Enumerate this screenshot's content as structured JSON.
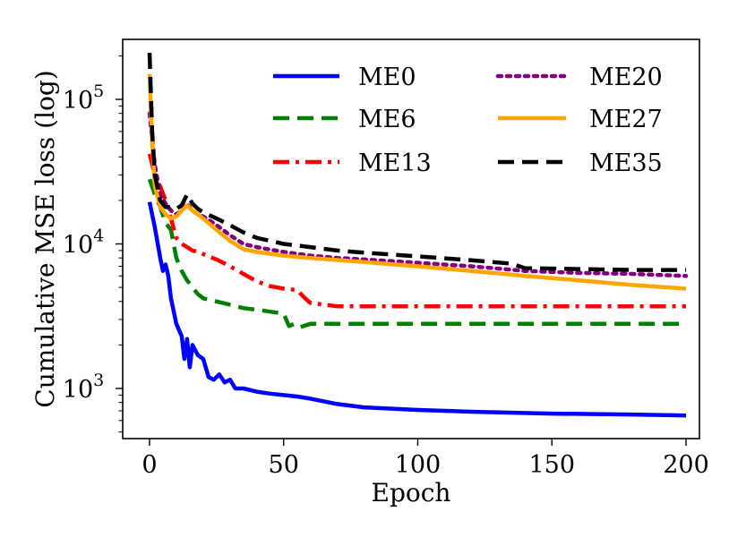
{
  "chart_data": {
    "type": "line",
    "title": "",
    "xlabel": "Epoch",
    "ylabel": "Cumulative MSE loss (log)",
    "xlim": [
      -10,
      205
    ],
    "ylim": [
      450,
      260000
    ],
    "yscale": "log",
    "grid": false,
    "legend_placement": "top-right",
    "x_ticks": [
      {
        "value": 0,
        "label": "0"
      },
      {
        "value": 50,
        "label": "50"
      },
      {
        "value": 100,
        "label": "100"
      },
      {
        "value": 150,
        "label": "150"
      },
      {
        "value": 200,
        "label": "200"
      }
    ],
    "y_ticks": [
      {
        "value": 1000,
        "base": "10",
        "exp": "3"
      },
      {
        "value": 10000,
        "base": "10",
        "exp": "4"
      },
      {
        "value": 100000,
        "base": "10",
        "exp": "5"
      }
    ],
    "series": [
      {
        "name": "ME0",
        "color": "#0000ff",
        "dash": "solid",
        "x": [
          0,
          2,
          4,
          5,
          6,
          7,
          8,
          10,
          12,
          13,
          14,
          15,
          16,
          18,
          20,
          22,
          24,
          26,
          28,
          30,
          32,
          35,
          40,
          45,
          50,
          55,
          60,
          70,
          80,
          100,
          120,
          150,
          180,
          200
        ],
        "y": [
          19500,
          13000,
          8000,
          6500,
          7200,
          6000,
          4200,
          2800,
          2300,
          1600,
          2200,
          1400,
          2000,
          1700,
          1600,
          1200,
          1150,
          1250,
          1100,
          1150,
          1000,
          1000,
          950,
          920,
          900,
          880,
          850,
          780,
          740,
          710,
          690,
          670,
          660,
          650
        ]
      },
      {
        "name": "ME6",
        "color": "#008000",
        "dash": "dashed",
        "x": [
          0,
          2,
          4,
          6,
          8,
          10,
          12,
          14,
          16,
          18,
          20,
          25,
          30,
          35,
          40,
          45,
          50,
          52,
          54,
          56,
          60,
          70,
          80,
          100,
          150,
          200
        ],
        "y": [
          28000,
          22000,
          18000,
          14000,
          12500,
          8000,
          6500,
          5600,
          5000,
          4500,
          4200,
          4000,
          3800,
          3600,
          3500,
          3400,
          3300,
          2700,
          2800,
          2650,
          2800,
          2800,
          2800,
          2800,
          2800,
          2800
        ]
      },
      {
        "name": "ME13",
        "color": "#ff0000",
        "dash": "dashdot",
        "x": [
          0,
          2,
          4,
          6,
          8,
          10,
          12,
          14,
          16,
          18,
          20,
          25,
          30,
          35,
          40,
          45,
          50,
          55,
          58,
          60,
          65,
          70,
          80,
          100,
          150,
          200
        ],
        "y": [
          42000,
          30000,
          25000,
          20000,
          15000,
          11000,
          10000,
          9500,
          9000,
          8800,
          8500,
          7800,
          7000,
          6200,
          5500,
          5100,
          4900,
          4800,
          4200,
          3900,
          3800,
          3700,
          3700,
          3700,
          3700,
          3700
        ]
      },
      {
        "name": "ME20",
        "color": "#800080",
        "dash": "dotted",
        "x": [
          0,
          2,
          4,
          6,
          8,
          10,
          12,
          14,
          16,
          18,
          20,
          25,
          30,
          35,
          40,
          50,
          60,
          70,
          80,
          100,
          120,
          140,
          160,
          180,
          200
        ],
        "y": [
          80000,
          35000,
          22000,
          19000,
          17000,
          16000,
          17000,
          19000,
          17000,
          16000,
          15500,
          13500,
          11500,
          10000,
          9500,
          8800,
          8300,
          8000,
          7800,
          7400,
          7000,
          6500,
          6300,
          6200,
          6000
        ]
      },
      {
        "name": "ME27",
        "color": "#ffa500",
        "dash": "solid",
        "x": [
          0,
          1,
          2,
          4,
          6,
          8,
          10,
          12,
          14,
          16,
          18,
          20,
          25,
          30,
          35,
          40,
          50,
          60,
          80,
          100,
          120,
          140,
          160,
          180,
          200
        ],
        "y": [
          150000,
          50000,
          25000,
          18000,
          16000,
          15000,
          15500,
          17000,
          18500,
          17000,
          16000,
          15000,
          12500,
          10500,
          9200,
          8800,
          8300,
          8000,
          7500,
          7000,
          6500,
          6000,
          5600,
          5200,
          4900
        ]
      },
      {
        "name": "ME35",
        "color": "#000000",
        "dash": "dashed",
        "x": [
          0,
          1,
          2,
          4,
          6,
          8,
          10,
          12,
          14,
          16,
          18,
          20,
          25,
          30,
          35,
          40,
          50,
          60,
          70,
          80,
          100,
          120,
          135,
          140,
          160,
          180,
          200
        ],
        "y": [
          210000,
          60000,
          30000,
          20000,
          18000,
          18000,
          17500,
          18500,
          22000,
          19000,
          17500,
          16500,
          15000,
          13500,
          12000,
          11000,
          10000,
          9500,
          9000,
          8700,
          8200,
          7700,
          7300,
          6800,
          6700,
          6600,
          6600
        ]
      }
    ]
  }
}
